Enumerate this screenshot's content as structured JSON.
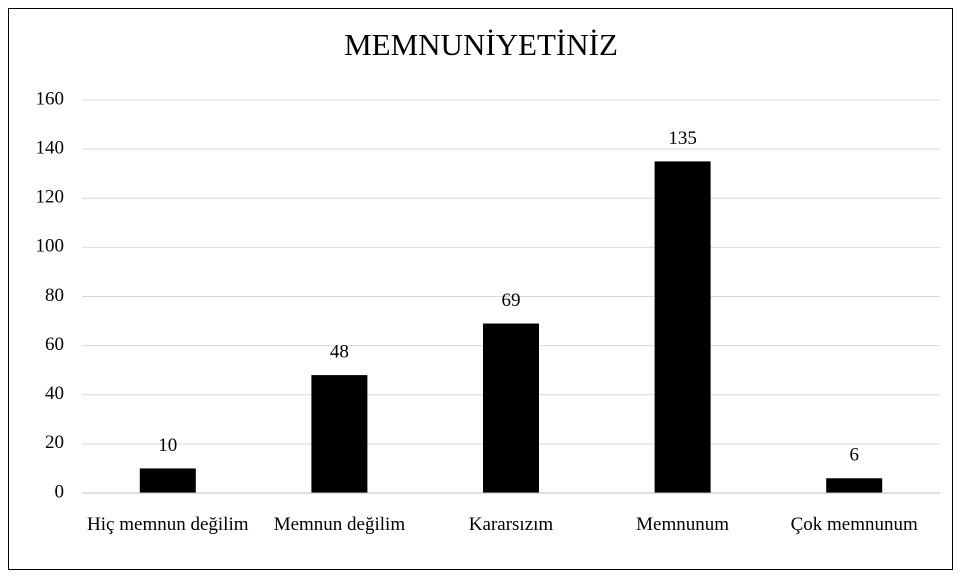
{
  "chart_data": {
    "type": "bar",
    "title": "MEMNUNİYETİNİZ",
    "categories": [
      "Hiç memnun değilim",
      "Memnun değilim",
      "Kararsızım",
      "Memnunum",
      "Çok memnunum"
    ],
    "values": [
      10,
      48,
      69,
      135,
      6
    ],
    "color": "#000000",
    "ylim": [
      0,
      160
    ],
    "yticks": [
      0,
      20,
      40,
      60,
      80,
      100,
      120,
      140,
      160
    ],
    "grid": true
  }
}
